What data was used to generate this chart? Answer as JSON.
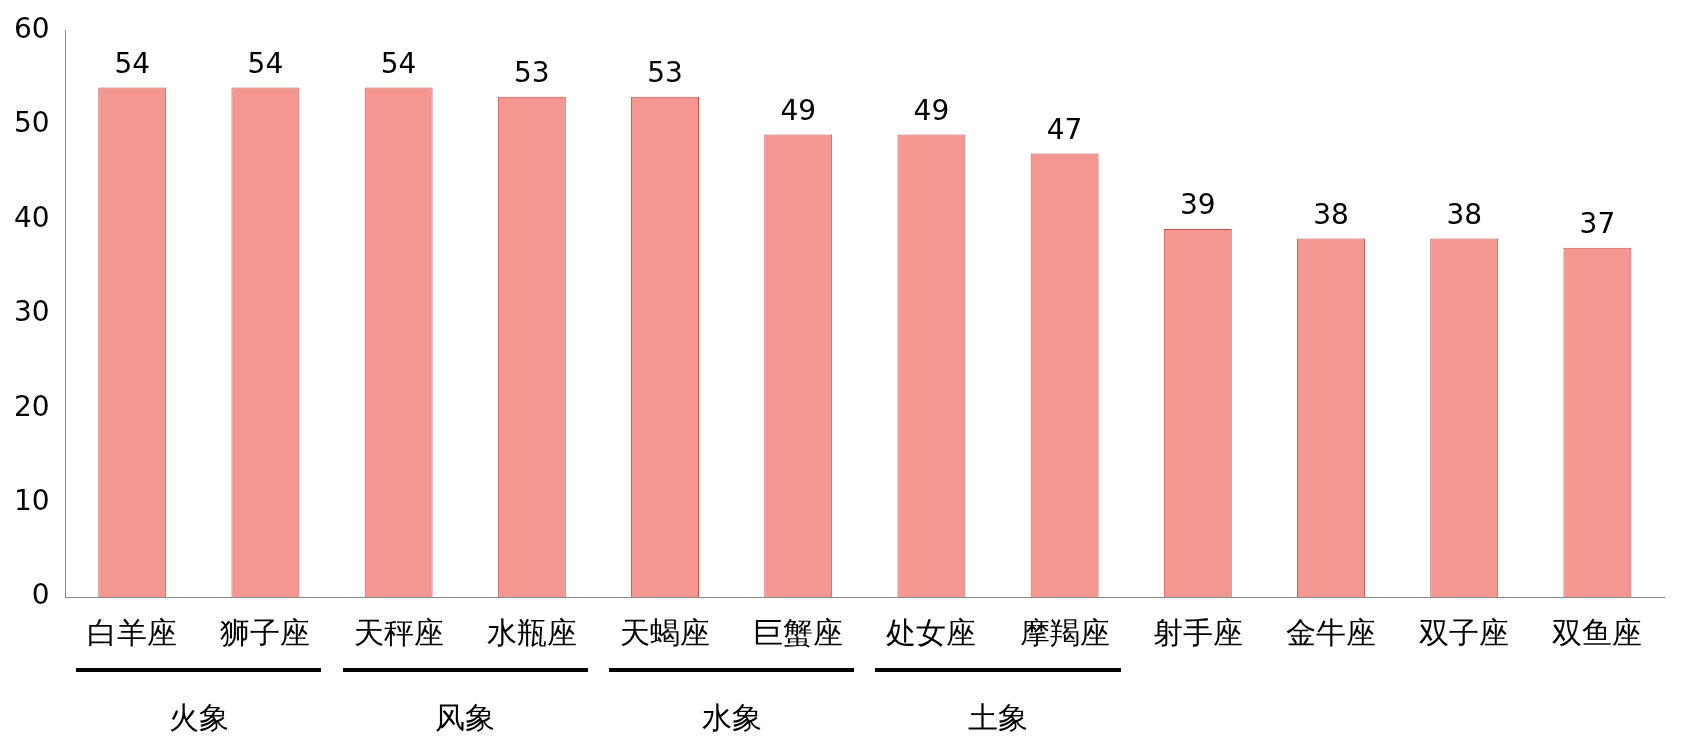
{
  "chart_data": {
    "type": "bar",
    "categories": [
      "白羊座",
      "狮子座",
      "天秤座",
      "水瓶座",
      "天蝎座",
      "巨蟹座",
      "处女座",
      "摩羯座",
      "射手座",
      "金牛座",
      "双子座",
      "双鱼座"
    ],
    "values": [
      54,
      54,
      54,
      53,
      53,
      49,
      49,
      47,
      39,
      38,
      38,
      37
    ],
    "color": "#f39790",
    "ylim": [
      0,
      60
    ],
    "yticks": [
      0,
      10,
      20,
      30,
      40,
      50,
      60
    ],
    "grid": false,
    "legend": false,
    "data_labels": true,
    "annotations": [
      "火象",
      "风象",
      "水象",
      "土象"
    ]
  }
}
